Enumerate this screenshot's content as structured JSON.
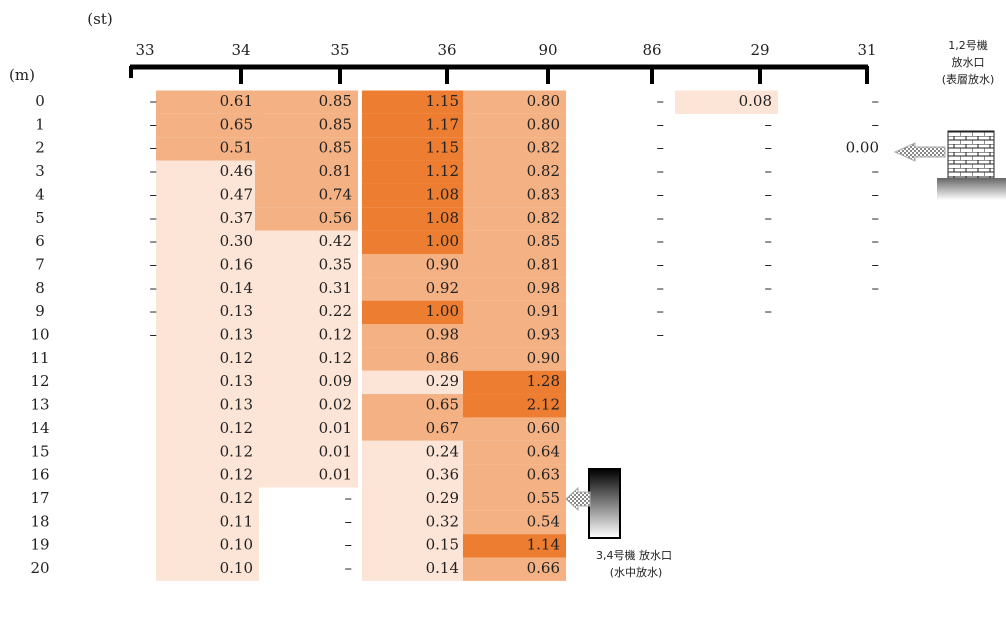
{
  "header": {
    "st_label": "(st)",
    "m_label": "(m)"
  },
  "table": {
    "depths": [
      "0",
      "1",
      "2",
      "3",
      "4",
      "5",
      "6",
      "7",
      "8",
      "9",
      "10",
      "11",
      "12",
      "13",
      "14",
      "15",
      "16",
      "17",
      "18",
      "19",
      "20"
    ],
    "columns": [
      {
        "station": "33",
        "cells": [
          "–",
          "–",
          "–",
          "–",
          "–",
          "–",
          "–",
          "–",
          "–",
          "–",
          "–",
          null,
          null,
          null,
          null,
          null,
          null,
          null,
          null,
          null,
          null
        ]
      },
      {
        "station": "34",
        "cells": [
          "0.61",
          "0.65",
          "0.51",
          "0.46",
          "0.47",
          "0.37",
          "0.30",
          "0.16",
          "0.14",
          "0.13",
          "0.13",
          "0.12",
          "0.13",
          "0.13",
          "0.12",
          "0.12",
          "0.12",
          "0.12",
          "0.11",
          "0.10",
          "0.10"
        ]
      },
      {
        "station": "35",
        "cells": [
          "0.85",
          "0.85",
          "0.85",
          "0.81",
          "0.74",
          "0.56",
          "0.42",
          "0.35",
          "0.31",
          "0.22",
          "0.12",
          "0.12",
          "0.09",
          "0.02",
          "0.01",
          "0.01",
          "0.01",
          "–",
          "–",
          "–",
          "–"
        ]
      },
      {
        "station": "36",
        "cells": [
          "1.15",
          "1.17",
          "1.15",
          "1.12",
          "1.08",
          "1.08",
          "1.00",
          "0.90",
          "0.92",
          "1.00",
          "0.98",
          "0.86",
          "0.29",
          "0.65",
          "0.67",
          "0.24",
          "0.36",
          "0.29",
          "0.32",
          "0.15",
          "0.14"
        ]
      },
      {
        "station": "90",
        "cells": [
          "0.80",
          "0.80",
          "0.82",
          "0.82",
          "0.83",
          "0.82",
          "0.85",
          "0.81",
          "0.98",
          "0.91",
          "0.93",
          "0.90",
          "1.28",
          "2.12",
          "0.60",
          "0.64",
          "0.63",
          "0.55",
          "0.54",
          "1.14",
          "0.66"
        ]
      },
      {
        "station": "86",
        "cells": [
          "–",
          "–",
          "–",
          "–",
          "–",
          "–",
          "–",
          "–",
          "–",
          "–",
          "–",
          null,
          null,
          null,
          null,
          null,
          null,
          null,
          null,
          null,
          null
        ]
      },
      {
        "station": "29",
        "cells": [
          "0.08",
          "–",
          "–",
          "–",
          "–",
          "–",
          "–",
          "–",
          "–",
          "–",
          null,
          null,
          null,
          null,
          null,
          null,
          null,
          null,
          null,
          null,
          null
        ]
      },
      {
        "station": "31",
        "cells": [
          "–",
          "–",
          "0.00",
          "–",
          "–",
          "–",
          "–",
          "–",
          "–",
          null,
          null,
          null,
          null,
          null,
          null,
          null,
          null,
          null,
          null,
          null,
          null
        ]
      }
    ],
    "shades": [
      {
        "min": 1.0,
        "color": "#ed7d31"
      },
      {
        "min": 0.5,
        "color": "#f4b183"
      },
      {
        "above": 0,
        "color": "#fce4d6"
      }
    ]
  },
  "outlets": {
    "surface": [
      "1,2号機",
      "放水口",
      "(表層放水)"
    ],
    "underwater": [
      "3,4号機 放水口",
      "(水中放水)"
    ]
  }
}
